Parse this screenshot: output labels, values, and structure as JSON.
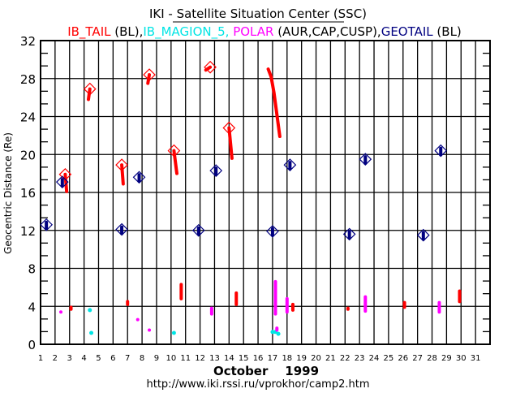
{
  "chart_data": {
    "type": "scatter",
    "title": "IKI - Satellite Situation Center (SSC)",
    "legend": [
      {
        "name": "IB_TAIL",
        "suffix": " (BL),",
        "color": "#ff0000"
      },
      {
        "name": "IB_MAGION_5,",
        "suffix": " ",
        "color": "#00e5e5"
      },
      {
        "name": "POLAR",
        "suffix": " (AUR,CAP,CUSP),",
        "color": "#ff00ff"
      },
      {
        "name": "GEOTAIL",
        "suffix": " (BL)",
        "color": "#000080"
      }
    ],
    "legend_placement": "top",
    "xlabel": "October    1999",
    "ylabel": "Geocentric Distance (Re)",
    "footer": "http://www.iki.rssi.ru/vprokhor/camp2.htm",
    "xlim": [
      1,
      32
    ],
    "ylim": [
      0,
      32
    ],
    "x_ticks": [
      1,
      2,
      3,
      4,
      5,
      6,
      7,
      8,
      9,
      10,
      11,
      12,
      13,
      14,
      15,
      16,
      17,
      18,
      19,
      20,
      21,
      22,
      23,
      24,
      25,
      26,
      27,
      28,
      29,
      30,
      31
    ],
    "y_ticks": [
      0,
      4,
      8,
      12,
      16,
      20,
      24,
      28,
      32
    ],
    "y_minor_step": 1.333,
    "grid": true,
    "series": [
      {
        "name": "IB_TAIL",
        "color": "#ff0000",
        "segments": [
          {
            "marker": true,
            "points": [
              [
                2.7,
                17.9
              ],
              [
                2.8,
                16.1
              ]
            ]
          },
          {
            "marker": true,
            "points": [
              [
                4.4,
                26.9
              ],
              [
                4.3,
                25.8
              ]
            ]
          },
          {
            "marker": true,
            "points": [
              [
                6.6,
                18.9
              ],
              [
                6.7,
                16.9
              ]
            ]
          },
          {
            "marker": true,
            "points": [
              [
                8.5,
                28.4
              ],
              [
                8.4,
                27.5
              ]
            ]
          },
          {
            "marker": true,
            "points": [
              [
                10.2,
                20.4
              ],
              [
                10.4,
                18.0
              ]
            ]
          },
          {
            "marker": true,
            "points": [
              [
                12.7,
                29.2
              ],
              [
                12.4,
                28.9
              ]
            ]
          },
          {
            "marker": true,
            "points": [
              [
                14.0,
                22.8
              ],
              [
                14.2,
                19.6
              ]
            ]
          },
          {
            "marker": false,
            "points": [
              [
                16.7,
                29.0
              ],
              [
                16.9,
                28.2
              ],
              [
                17.1,
                26.5
              ],
              [
                17.3,
                24.2
              ],
              [
                17.5,
                21.9
              ]
            ]
          },
          {
            "marker": false,
            "points": [
              [
                3.1,
                3.9
              ],
              [
                3.1,
                3.7
              ]
            ]
          },
          {
            "marker": false,
            "points": [
              [
                7.0,
                4.5
              ],
              [
                7.0,
                4.2
              ]
            ]
          },
          {
            "marker": false,
            "points": [
              [
                10.7,
                6.3
              ],
              [
                10.7,
                4.8
              ]
            ]
          },
          {
            "marker": false,
            "points": [
              [
                14.5,
                5.4
              ],
              [
                14.5,
                4.2
              ]
            ]
          },
          {
            "marker": false,
            "points": [
              [
                18.4,
                4.2
              ],
              [
                18.4,
                3.6
              ]
            ]
          },
          {
            "marker": false,
            "points": [
              [
                22.2,
                3.8
              ],
              [
                22.2,
                3.7
              ]
            ]
          },
          {
            "marker": false,
            "points": [
              [
                26.1,
                4.4
              ],
              [
                26.1,
                3.9
              ]
            ]
          },
          {
            "marker": false,
            "points": [
              [
                29.9,
                5.6
              ],
              [
                29.9,
                4.5
              ]
            ]
          }
        ]
      },
      {
        "name": "IB_MAGION_5",
        "color": "#00e5e5",
        "points": [
          [
            4.4,
            3.6
          ],
          [
            4.5,
            1.2
          ],
          [
            10.2,
            1.2
          ],
          [
            17.0,
            1.3
          ],
          [
            17.2,
            1.3
          ],
          [
            17.4,
            1.1
          ]
        ]
      },
      {
        "name": "POLAR",
        "color": "#ff00ff",
        "segments": [
          {
            "points": [
              [
                2.4,
                3.4
              ],
              [
                2.4,
                3.4
              ]
            ]
          },
          {
            "points": [
              [
                7.7,
                2.6
              ],
              [
                7.7,
                2.6
              ]
            ]
          },
          {
            "points": [
              [
                8.5,
                1.5
              ],
              [
                8.5,
                1.5
              ]
            ]
          },
          {
            "points": [
              [
                12.8,
                3.8
              ],
              [
                12.8,
                3.2
              ]
            ]
          },
          {
            "points": [
              [
                17.2,
                6.6
              ],
              [
                17.2,
                3.2
              ]
            ]
          },
          {
            "points": [
              [
                17.3,
                1.7
              ],
              [
                17.3,
                1.5
              ]
            ]
          },
          {
            "points": [
              [
                18.0,
                4.8
              ],
              [
                18.0,
                3.4
              ]
            ]
          },
          {
            "points": [
              [
                23.4,
                5.0
              ],
              [
                23.4,
                3.5
              ]
            ]
          },
          {
            "points": [
              [
                28.5,
                4.4
              ],
              [
                28.5,
                3.4
              ]
            ]
          }
        ]
      },
      {
        "name": "GEOTAIL",
        "color": "#000080",
        "markers": [
          [
            1.4,
            12.6
          ],
          [
            2.5,
            17.1
          ],
          [
            6.6,
            12.1
          ],
          [
            7.8,
            17.6
          ],
          [
            11.9,
            12.0
          ],
          [
            13.1,
            18.3
          ],
          [
            17.0,
            11.9
          ],
          [
            18.2,
            18.9
          ],
          [
            22.3,
            11.6
          ],
          [
            23.4,
            19.5
          ],
          [
            27.4,
            11.5
          ],
          [
            28.6,
            20.4
          ]
        ]
      }
    ]
  }
}
